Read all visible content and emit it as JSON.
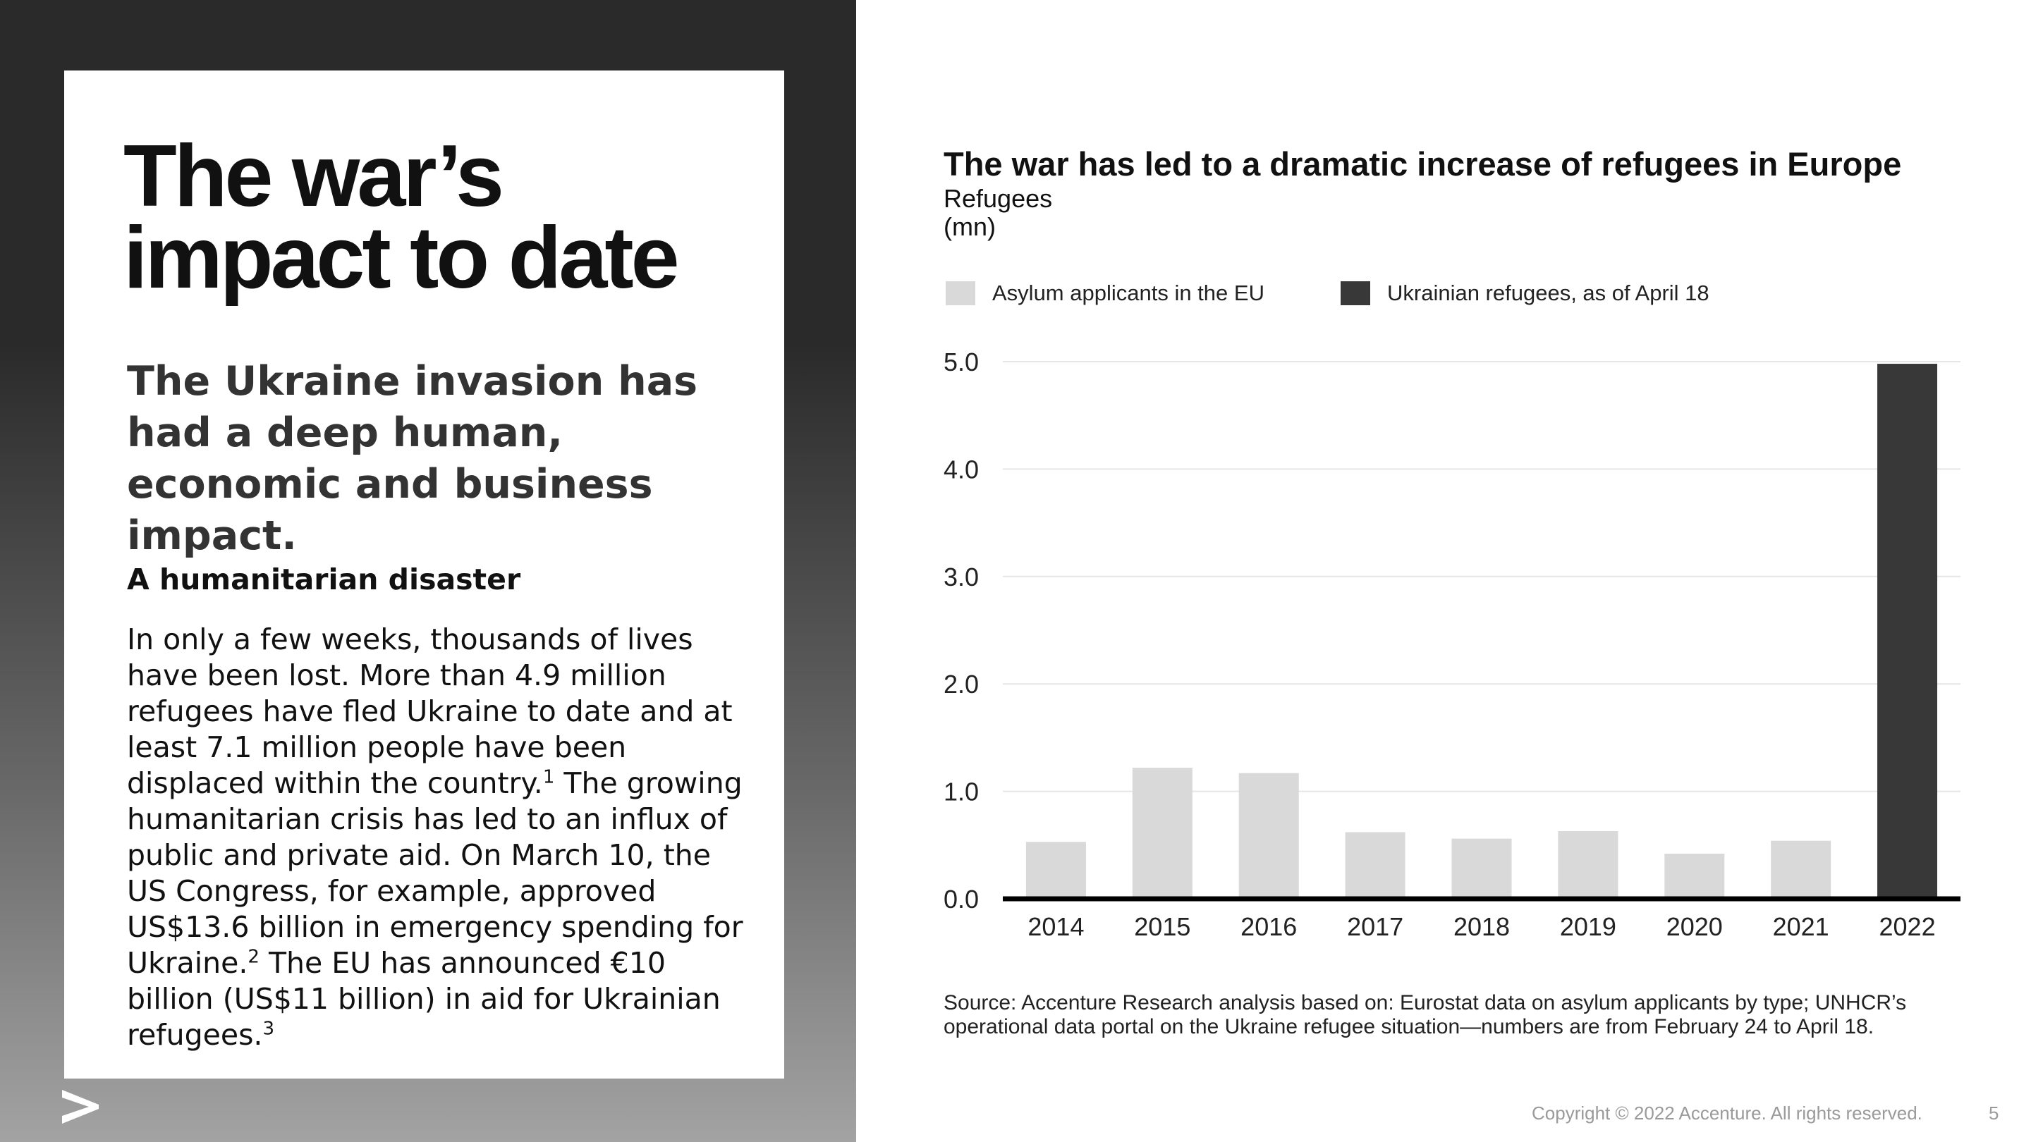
{
  "left": {
    "title": "The war’s impact to date",
    "lead": "The Ukraine invasion has had a deep human, economic and business impact.",
    "subheading": "A humanitarian disaster",
    "body": {
      "part1": "In only a few weeks, thousands of lives have been lost. More than 4.9 million refugees have fled Ukraine to date and at least 7.1 million people have been displaced within the country.",
      "sup1": "1",
      "part2": " The growing humanitarian crisis has led to an influx of public and private aid. On March 10, the US Congress, for example, approved US$13.6 billion in emergency spending for Ukraine.",
      "sup2": "2",
      "part3": " The EU has announced €10 billion (US$11 billion) in aid for Ukrainian refugees.",
      "sup3": "3"
    },
    "logo_icon": "accenture-chevron-icon"
  },
  "chart_data": {
    "type": "bar",
    "title": "The war has led to a dramatic increase of refugees in Europe",
    "ylabel": "Refugees (mn)",
    "ylabel_lines": [
      "Refugees",
      "(mn)"
    ],
    "xlabel": "",
    "categories": [
      "2014",
      "2015",
      "2016",
      "2017",
      "2018",
      "2019",
      "2020",
      "2021",
      "2022"
    ],
    "series": [
      {
        "name": "Asylum applicants in the EU",
        "color": "#d9d9d9",
        "values": [
          0.53,
          1.22,
          1.17,
          0.62,
          0.56,
          0.63,
          0.42,
          0.54,
          null
        ]
      },
      {
        "name": "Ukrainian refugees, as of April 18",
        "color": "#383838",
        "values": [
          null,
          null,
          null,
          null,
          null,
          null,
          null,
          null,
          4.98
        ]
      }
    ],
    "ylim": [
      0,
      5
    ],
    "yticks": [
      "0.0",
      "1.0",
      "2.0",
      "3.0",
      "4.0",
      "5.0"
    ],
    "grid": true,
    "legend_position": "top-left"
  },
  "source": "Source: Accenture Research analysis based on: Eurostat data on asylum applicants by type; UNHCR’s operational data portal on the Ukraine refugee situation—numbers are from February 24 to April 18.",
  "footer": {
    "copyright": "Copyright © 2022 Accenture. All rights reserved.",
    "page": "5"
  }
}
